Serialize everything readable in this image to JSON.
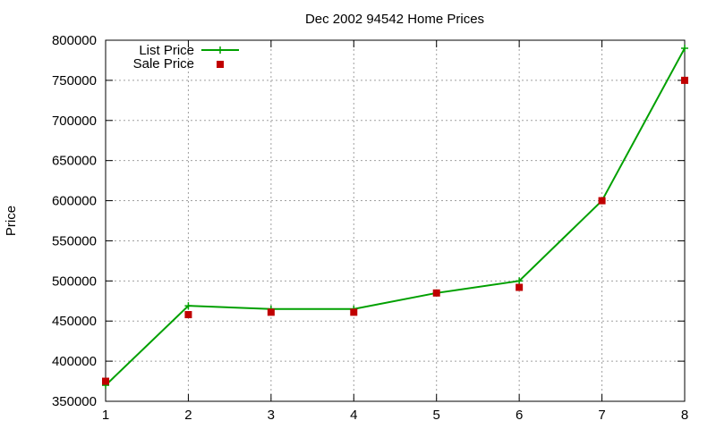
{
  "chart_data": {
    "type": "line",
    "title": "Dec 2002 94542 Home Prices",
    "xlabel": "",
    "ylabel": "Price",
    "xlim": [
      1,
      8
    ],
    "ylim": [
      350000,
      800000
    ],
    "x_ticks": [
      "1",
      "2",
      "3",
      "4",
      "5",
      "6",
      "7",
      "8"
    ],
    "y_ticks": [
      "350000",
      "400000",
      "450000",
      "500000",
      "550000",
      "600000",
      "650000",
      "700000",
      "750000",
      "800000"
    ],
    "grid": true,
    "legend_position": "top-left",
    "x": [
      1,
      2,
      3,
      4,
      5,
      6,
      7,
      8
    ],
    "series": [
      {
        "name": "List Price",
        "style": "linespoints",
        "marker": "plus",
        "color": "#00a000",
        "values": [
          370000,
          469000,
          465000,
          465000,
          485000,
          500000,
          600000,
          790000
        ]
      },
      {
        "name": "Sale Price",
        "style": "points",
        "marker": "square",
        "color": "#c00000",
        "values": [
          375000,
          458000,
          461000,
          461000,
          485000,
          492000,
          600000,
          750000
        ]
      }
    ]
  }
}
